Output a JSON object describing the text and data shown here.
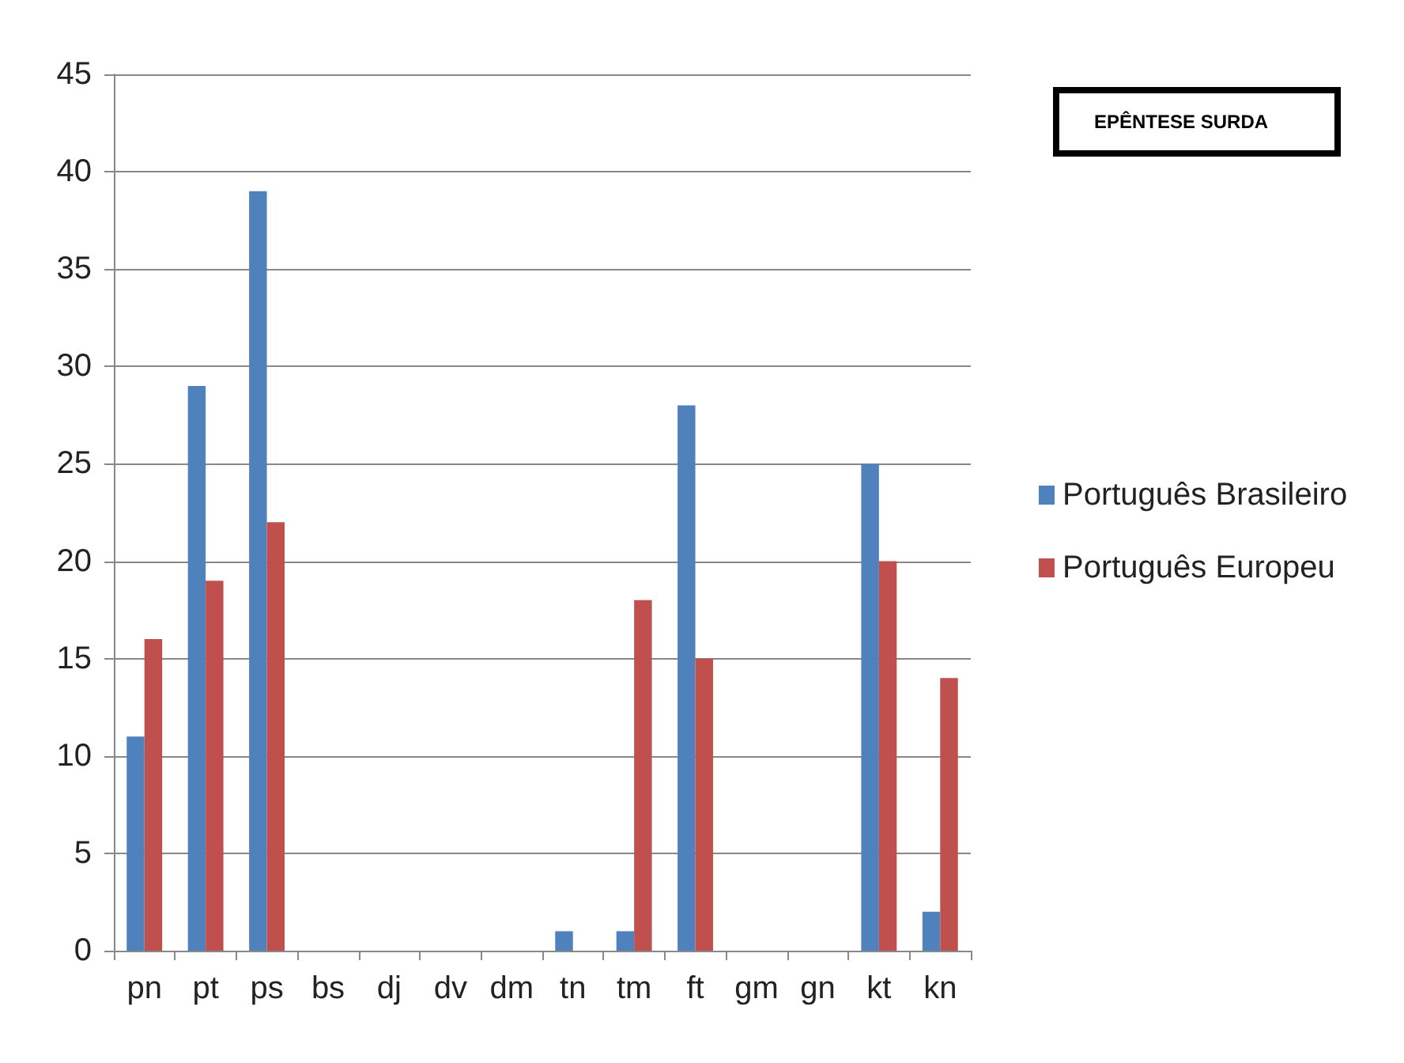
{
  "chart_data": {
    "type": "bar",
    "title": "EPÊNTESE SURDA",
    "categories": [
      "pn",
      "pt",
      "ps",
      "bs",
      "dj",
      "dv",
      "dm",
      "tn",
      "tm",
      "ft",
      "gm",
      "gn",
      "kt",
      "kn"
    ],
    "series": [
      {
        "name": "Português Brasileiro",
        "color": "#4f81bd",
        "values": [
          11,
          29,
          39,
          0,
          0,
          0,
          0,
          1,
          1,
          28,
          0,
          0,
          25,
          2
        ]
      },
      {
        "name": "Português Europeu",
        "color": "#c0504d",
        "values": [
          16,
          19,
          22,
          0,
          0,
          0,
          0,
          0,
          18,
          15,
          0,
          0,
          20,
          14
        ]
      }
    ],
    "ylim": [
      0,
      45
    ],
    "yticks": [
      0,
      5,
      10,
      15,
      20,
      25,
      30,
      35,
      40,
      45
    ],
    "grid": "y",
    "legend": "right"
  }
}
